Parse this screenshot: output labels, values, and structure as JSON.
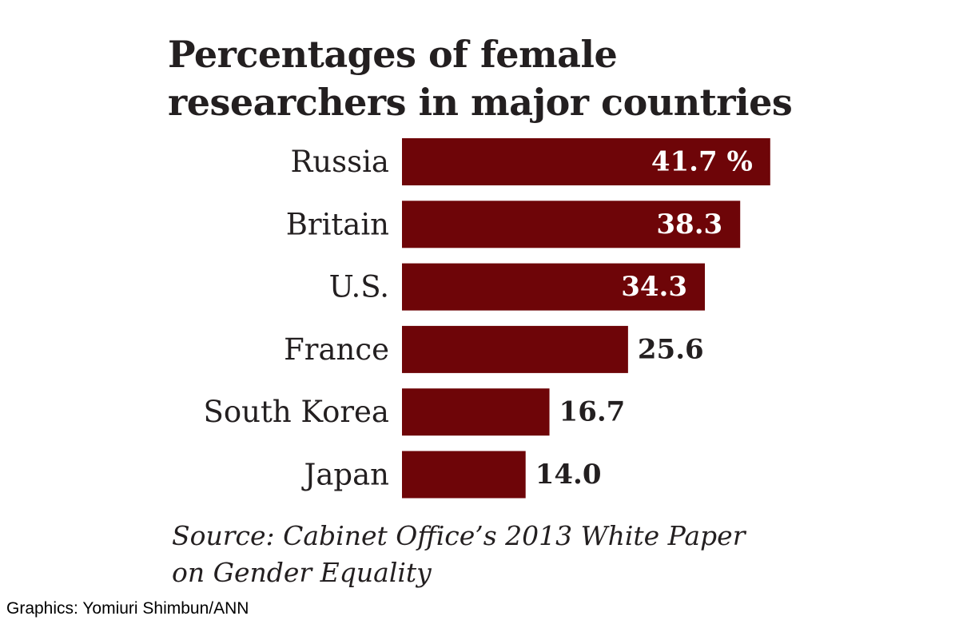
{
  "title_lines": [
    "Percentages of female",
    "researchers in major countries"
  ],
  "source_lines": [
    "Source: Cabinet Office’s 2013 White Paper",
    "on Gender Equality"
  ],
  "credit": "Graphics: Yomiuri Shimbun/ANN",
  "colors": {
    "bar": "#6e0508",
    "text": "#231f20",
    "label_inside": "#ffffff"
  },
  "chart_data": {
    "type": "bar",
    "orientation": "horizontal",
    "categories": [
      "Russia",
      "Britain",
      "U.S.",
      "France",
      "South Korea",
      "Japan"
    ],
    "values": [
      41.7,
      38.3,
      34.3,
      25.6,
      16.7,
      14.0
    ],
    "value_labels": [
      "41.7 %",
      "38.3",
      "34.3",
      "25.6",
      "16.7",
      "14.0"
    ],
    "unit": "%",
    "grid": false
  }
}
